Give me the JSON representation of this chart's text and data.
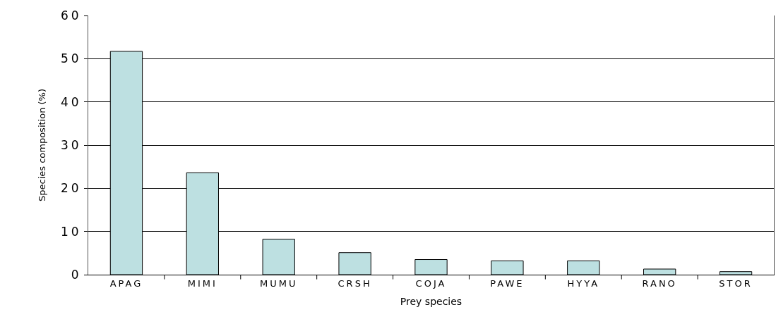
{
  "chart_data": {
    "type": "bar",
    "xlabel": "Prey species",
    "ylabel": "Species composition (%)",
    "categories": [
      "APAG",
      "MIMI",
      "MUMU",
      "CRSH",
      "COJA",
      "PAWE",
      "HYYA",
      "RANO",
      "STOR"
    ],
    "values": [
      51.7,
      23.6,
      8.2,
      5.1,
      3.5,
      3.2,
      3.2,
      1.3,
      0.7
    ],
    "color": "#bde0e1",
    "ylim": [
      0,
      60
    ],
    "yticks": [
      0,
      10,
      20,
      30,
      40,
      50,
      60
    ],
    "grid": "y",
    "legend": false
  }
}
